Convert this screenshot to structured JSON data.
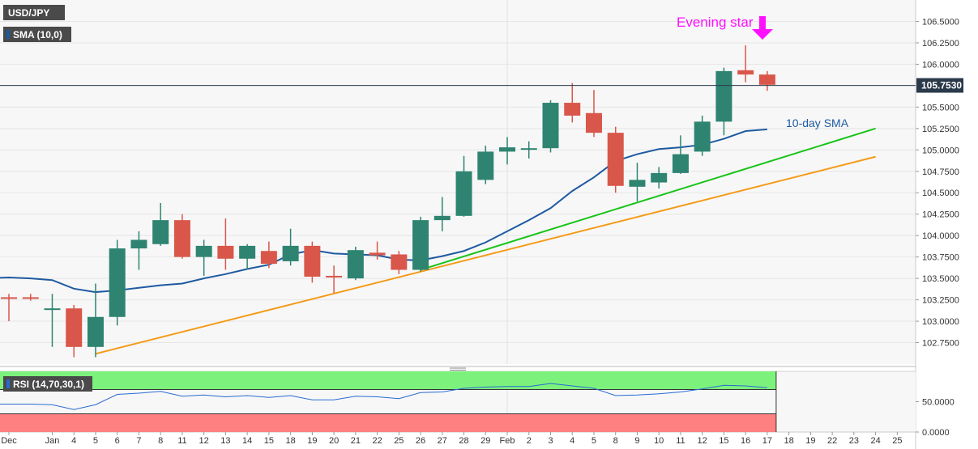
{
  "symbol_label": "USD/JPY",
  "indicator_label": "SMA (10,0)",
  "rsi_label": "RSI (14,70,30,1)",
  "price_tag": "105.7530",
  "annotations": {
    "pattern": "Evening star",
    "sma": "10-day SMA"
  },
  "colors": {
    "bull": "#2e8470",
    "bear": "#d9574a",
    "sma": "#1e5aa0",
    "trend_green": "#17c417",
    "trend_orange": "#f59a16",
    "annotation": "#ff10ff",
    "rsi_line": "#2a6ad0",
    "rsi_overbought": "#7cf27c",
    "rsi_oversold": "#ff8080",
    "price_tag_bg": "#2b3a4a",
    "current_line": "#2b3a4a"
  },
  "chart_data": [
    {
      "type": "candlestick",
      "y_ticks": [
        "102.7500",
        "103.0000",
        "103.2500",
        "103.5000",
        "103.7500",
        "104.0000",
        "104.2500",
        "104.5000",
        "104.7500",
        "105.0000",
        "105.2500",
        "105.5000",
        "105.7500",
        "106.0000",
        "106.2500",
        "106.5000"
      ],
      "ylim": [
        102.5,
        106.75
      ],
      "x_tick_labels": [
        {
          "label": "Dec",
          "i": 0
        },
        {
          "label": "Jan",
          "i": 2
        },
        {
          "label": "4",
          "i": 3
        },
        {
          "label": "5",
          "i": 4
        },
        {
          "label": "6",
          "i": 5
        },
        {
          "label": "7",
          "i": 6
        },
        {
          "label": "8",
          "i": 7
        },
        {
          "label": "11",
          "i": 8
        },
        {
          "label": "12",
          "i": 9
        },
        {
          "label": "13",
          "i": 10
        },
        {
          "label": "14",
          "i": 11
        },
        {
          "label": "15",
          "i": 12
        },
        {
          "label": "18",
          "i": 13
        },
        {
          "label": "19",
          "i": 14
        },
        {
          "label": "20",
          "i": 15
        },
        {
          "label": "21",
          "i": 16
        },
        {
          "label": "22",
          "i": 17
        },
        {
          "label": "25",
          "i": 18
        },
        {
          "label": "26",
          "i": 19
        },
        {
          "label": "27",
          "i": 20
        },
        {
          "label": "28",
          "i": 21
        },
        {
          "label": "29",
          "i": 22
        },
        {
          "label": "Feb",
          "i": 23
        },
        {
          "label": "2",
          "i": 24
        },
        {
          "label": "3",
          "i": 25
        },
        {
          "label": "4",
          "i": 26
        },
        {
          "label": "5",
          "i": 27
        },
        {
          "label": "8",
          "i": 28
        },
        {
          "label": "9",
          "i": 29
        },
        {
          "label": "10",
          "i": 30
        },
        {
          "label": "11",
          "i": 31
        },
        {
          "label": "12",
          "i": 32
        },
        {
          "label": "15",
          "i": 33
        },
        {
          "label": "16",
          "i": 34
        },
        {
          "label": "17",
          "i": 35
        },
        {
          "label": "18",
          "i": 36
        },
        {
          "label": "19",
          "i": 37
        },
        {
          "label": "22",
          "i": 38
        },
        {
          "label": "23",
          "i": 39
        },
        {
          "label": "24",
          "i": 40
        },
        {
          "label": "25",
          "i": 41
        }
      ],
      "candles": [
        {
          "i": -1.5,
          "o": 103.55,
          "h": 103.65,
          "l": 102.95,
          "c": 103.27
        },
        {
          "i": 0,
          "o": 103.28,
          "h": 103.32,
          "l": 103.0,
          "c": 103.27
        },
        {
          "i": 1,
          "o": 103.28,
          "h": 103.32,
          "l": 103.24,
          "c": 103.27
        },
        {
          "i": 2,
          "o": 103.14,
          "h": 103.32,
          "l": 102.7,
          "c": 103.15
        },
        {
          "i": 3,
          "o": 103.15,
          "h": 103.19,
          "l": 102.58,
          "c": 102.7
        },
        {
          "i": 4,
          "o": 102.7,
          "h": 103.44,
          "l": 102.58,
          "c": 103.05
        },
        {
          "i": 5,
          "o": 103.05,
          "h": 103.95,
          "l": 102.95,
          "c": 103.85
        },
        {
          "i": 6,
          "o": 103.85,
          "h": 104.05,
          "l": 103.6,
          "c": 103.95
        },
        {
          "i": 7,
          "o": 103.9,
          "h": 104.38,
          "l": 103.88,
          "c": 104.18
        },
        {
          "i": 8,
          "o": 104.18,
          "h": 104.25,
          "l": 103.73,
          "c": 103.75
        },
        {
          "i": 9,
          "o": 103.75,
          "h": 103.95,
          "l": 103.53,
          "c": 103.88
        },
        {
          "i": 10,
          "o": 103.88,
          "h": 104.2,
          "l": 103.6,
          "c": 103.73
        },
        {
          "i": 11,
          "o": 103.73,
          "h": 103.9,
          "l": 103.6,
          "c": 103.88
        },
        {
          "i": 12,
          "o": 103.82,
          "h": 103.93,
          "l": 103.62,
          "c": 103.67
        },
        {
          "i": 13,
          "o": 103.7,
          "h": 104.08,
          "l": 103.65,
          "c": 103.88
        },
        {
          "i": 14,
          "o": 103.88,
          "h": 103.93,
          "l": 103.45,
          "c": 103.52
        },
        {
          "i": 15,
          "o": 103.53,
          "h": 103.65,
          "l": 103.33,
          "c": 103.52
        },
        {
          "i": 16,
          "o": 103.5,
          "h": 103.87,
          "l": 103.48,
          "c": 103.83
        },
        {
          "i": 17,
          "o": 103.8,
          "h": 103.93,
          "l": 103.72,
          "c": 103.77
        },
        {
          "i": 18,
          "o": 103.78,
          "h": 103.82,
          "l": 103.55,
          "c": 103.6
        },
        {
          "i": 19,
          "o": 103.6,
          "h": 104.22,
          "l": 103.58,
          "c": 104.18
        },
        {
          "i": 20,
          "o": 104.18,
          "h": 104.45,
          "l": 104.05,
          "c": 104.23
        },
        {
          "i": 21,
          "o": 104.23,
          "h": 104.93,
          "l": 104.22,
          "c": 104.75
        },
        {
          "i": 22,
          "o": 104.65,
          "h": 105.05,
          "l": 104.6,
          "c": 104.98
        },
        {
          "i": 23,
          "o": 104.98,
          "h": 105.15,
          "l": 104.83,
          "c": 105.03
        },
        {
          "i": 24,
          "o": 105.02,
          "h": 105.1,
          "l": 104.9,
          "c": 105.02
        },
        {
          "i": 25,
          "o": 105.02,
          "h": 105.58,
          "l": 104.97,
          "c": 105.55
        },
        {
          "i": 26,
          "o": 105.55,
          "h": 105.78,
          "l": 105.32,
          "c": 105.4
        },
        {
          "i": 27,
          "o": 105.43,
          "h": 105.7,
          "l": 105.15,
          "c": 105.2
        },
        {
          "i": 28,
          "o": 105.2,
          "h": 105.27,
          "l": 104.5,
          "c": 104.58
        },
        {
          "i": 29,
          "o": 104.57,
          "h": 104.85,
          "l": 104.4,
          "c": 104.65
        },
        {
          "i": 30,
          "o": 104.62,
          "h": 104.8,
          "l": 104.55,
          "c": 104.73
        },
        {
          "i": 31,
          "o": 104.73,
          "h": 105.17,
          "l": 104.72,
          "c": 104.95
        },
        {
          "i": 32,
          "o": 104.98,
          "h": 105.4,
          "l": 104.93,
          "c": 105.33
        },
        {
          "i": 33,
          "o": 105.33,
          "h": 105.96,
          "l": 105.17,
          "c": 105.92
        },
        {
          "i": 34,
          "o": 105.93,
          "h": 106.22,
          "l": 105.79,
          "c": 105.88
        },
        {
          "i": 35,
          "o": 105.88,
          "h": 105.92,
          "l": 105.69,
          "c": 105.76
        }
      ],
      "sma": [
        {
          "i": -1.5,
          "v": 103.5
        },
        {
          "i": 0,
          "v": 103.51
        },
        {
          "i": 1,
          "v": 103.5
        },
        {
          "i": 2,
          "v": 103.48
        },
        {
          "i": 3,
          "v": 103.38
        },
        {
          "i": 4,
          "v": 103.34
        },
        {
          "i": 5,
          "v": 103.36
        },
        {
          "i": 6,
          "v": 103.39
        },
        {
          "i": 7,
          "v": 103.42
        },
        {
          "i": 8,
          "v": 103.44
        },
        {
          "i": 9,
          "v": 103.5
        },
        {
          "i": 10,
          "v": 103.55
        },
        {
          "i": 11,
          "v": 103.61
        },
        {
          "i": 12,
          "v": 103.66
        },
        {
          "i": 13,
          "v": 103.78
        },
        {
          "i": 14,
          "v": 103.83
        },
        {
          "i": 15,
          "v": 103.79
        },
        {
          "i": 16,
          "v": 103.78
        },
        {
          "i": 17,
          "v": 103.77
        },
        {
          "i": 18,
          "v": 103.72
        },
        {
          "i": 19,
          "v": 103.71
        },
        {
          "i": 20,
          "v": 103.76
        },
        {
          "i": 21,
          "v": 103.82
        },
        {
          "i": 22,
          "v": 103.92
        },
        {
          "i": 23,
          "v": 104.05
        },
        {
          "i": 24,
          "v": 104.18
        },
        {
          "i": 25,
          "v": 104.32
        },
        {
          "i": 26,
          "v": 104.52
        },
        {
          "i": 27,
          "v": 104.68
        },
        {
          "i": 28,
          "v": 104.87
        },
        {
          "i": 29,
          "v": 104.95
        },
        {
          "i": 30,
          "v": 105.01
        },
        {
          "i": 31,
          "v": 105.03
        },
        {
          "i": 32,
          "v": 105.06
        },
        {
          "i": 33,
          "v": 105.13
        },
        {
          "i": 34,
          "v": 105.22
        },
        {
          "i": 35,
          "v": 105.24
        }
      ],
      "trendlines": [
        {
          "name": "orange",
          "from": {
            "i": 4,
            "v": 102.62
          },
          "to": {
            "i": 40,
            "v": 104.92
          }
        },
        {
          "name": "green",
          "from": {
            "i": 19,
            "v": 103.6
          },
          "to": {
            "i": 40,
            "v": 105.25
          }
        }
      ],
      "current_price": 105.753
    },
    {
      "type": "line",
      "name_label": "RSI (14,70,30,1)",
      "y_ticks": [
        "50.0000",
        "0.0000"
      ],
      "ylim": [
        0,
        100
      ],
      "levels": [
        70,
        30
      ],
      "values": [
        {
          "i": -1.5,
          "v": 46
        },
        {
          "i": 0,
          "v": 46
        },
        {
          "i": 1,
          "v": 46
        },
        {
          "i": 2,
          "v": 45
        },
        {
          "i": 3,
          "v": 37
        },
        {
          "i": 4,
          "v": 45
        },
        {
          "i": 5,
          "v": 62
        },
        {
          "i": 6,
          "v": 64
        },
        {
          "i": 7,
          "v": 67
        },
        {
          "i": 8,
          "v": 59
        },
        {
          "i": 9,
          "v": 61
        },
        {
          "i": 10,
          "v": 58
        },
        {
          "i": 11,
          "v": 60
        },
        {
          "i": 12,
          "v": 57
        },
        {
          "i": 13,
          "v": 60
        },
        {
          "i": 14,
          "v": 53
        },
        {
          "i": 15,
          "v": 53
        },
        {
          "i": 16,
          "v": 59
        },
        {
          "i": 17,
          "v": 58
        },
        {
          "i": 18,
          "v": 55
        },
        {
          "i": 19,
          "v": 65
        },
        {
          "i": 20,
          "v": 66
        },
        {
          "i": 21,
          "v": 72
        },
        {
          "i": 22,
          "v": 74
        },
        {
          "i": 23,
          "v": 75
        },
        {
          "i": 24,
          "v": 75
        },
        {
          "i": 25,
          "v": 80
        },
        {
          "i": 26,
          "v": 76
        },
        {
          "i": 27,
          "v": 72
        },
        {
          "i": 28,
          "v": 60
        },
        {
          "i": 29,
          "v": 61
        },
        {
          "i": 30,
          "v": 63
        },
        {
          "i": 31,
          "v": 66
        },
        {
          "i": 32,
          "v": 71
        },
        {
          "i": 33,
          "v": 77
        },
        {
          "i": 34,
          "v": 76
        },
        {
          "i": 35,
          "v": 73
        }
      ]
    }
  ]
}
